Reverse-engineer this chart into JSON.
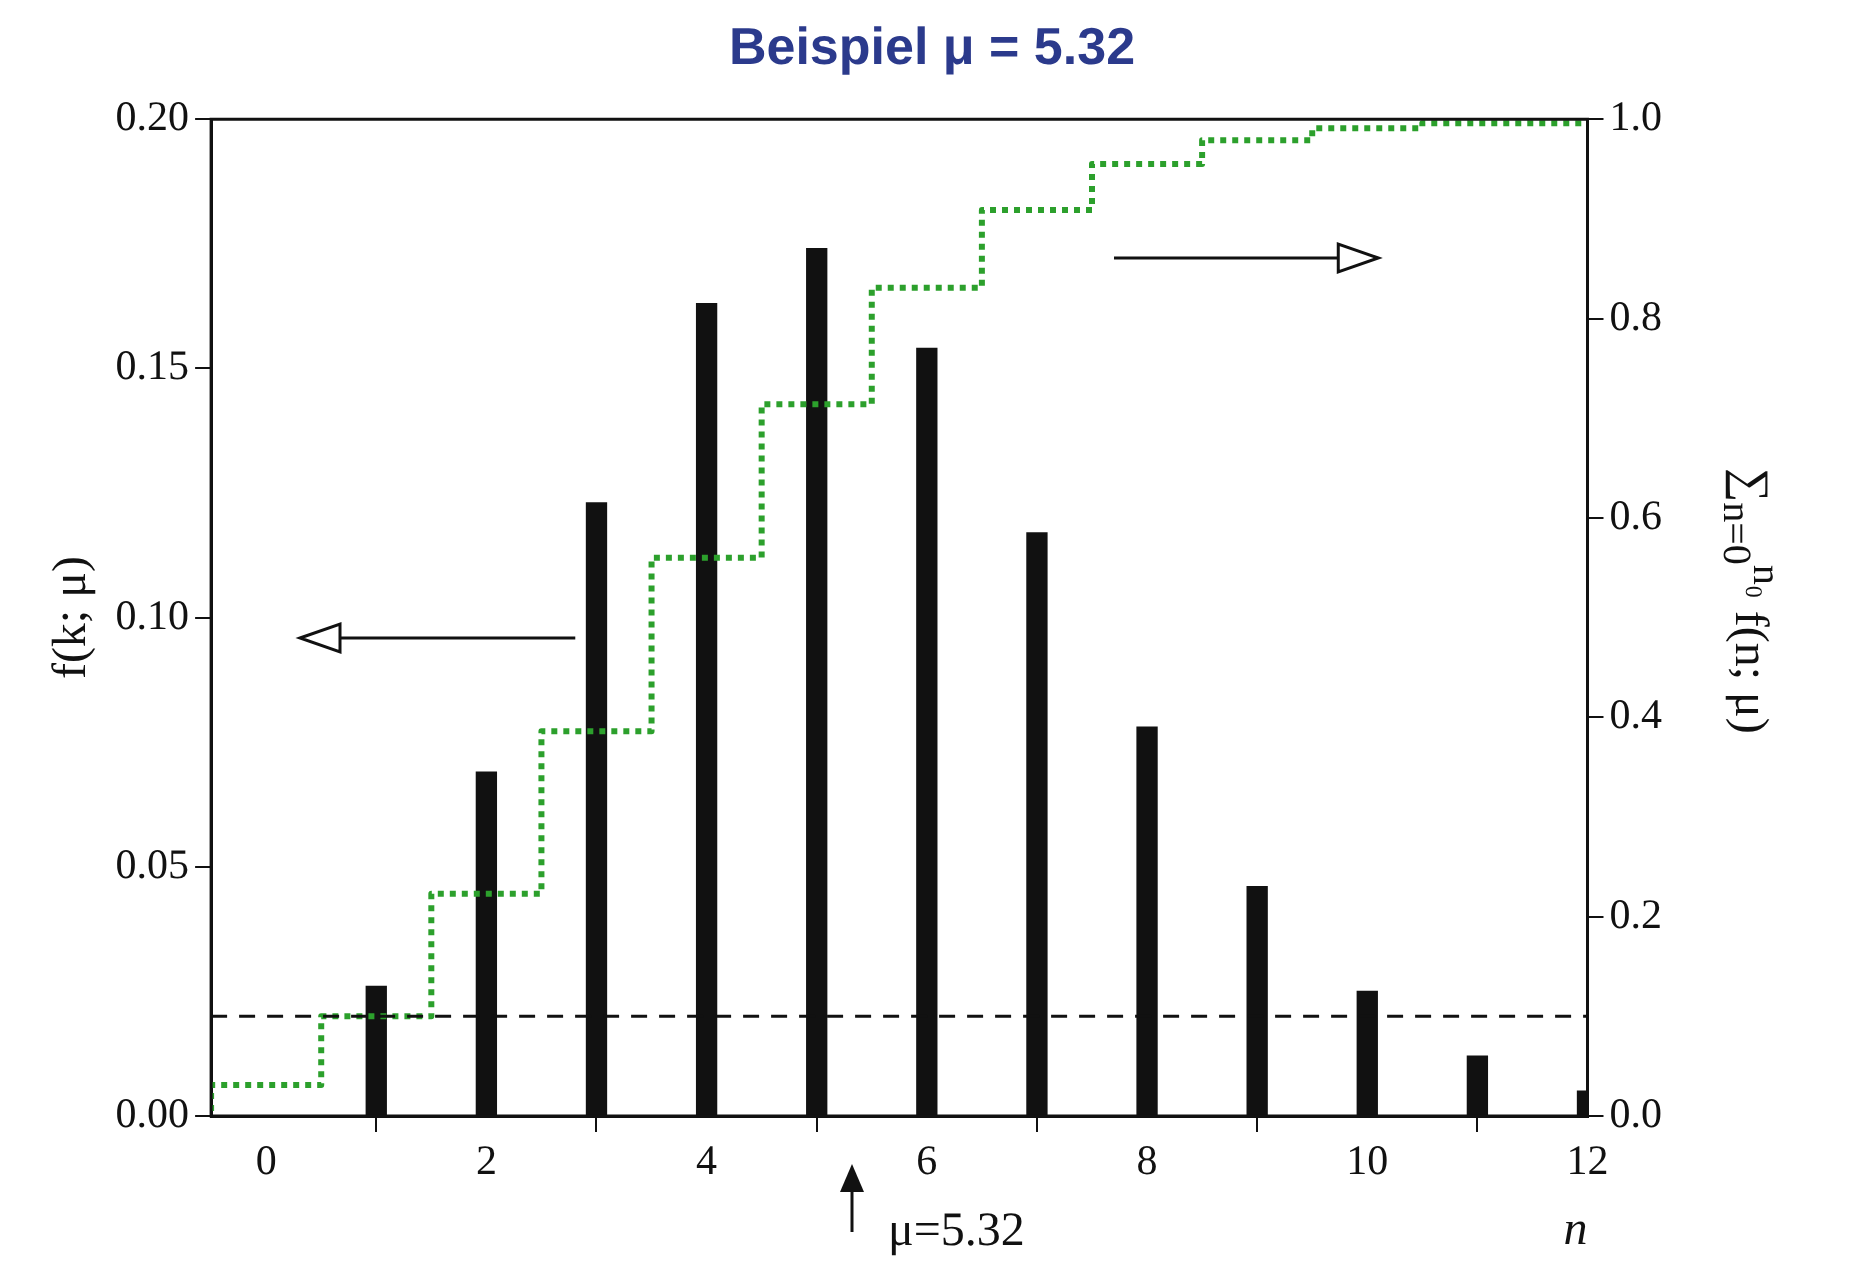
{
  "chart_data": {
    "type": "bar",
    "title": "Beispiel μ = 5.32",
    "xlabel": "n",
    "ylabel": "f(k; μ)",
    "y2label": "∑$_{n=0}$$^{n₀}$ f(n; μ)",
    "series": [
      {
        "color": "#111111",
        "x": [
          1,
          2,
          3,
          4,
          5,
          6,
          7,
          8,
          9,
          10,
          11,
          12
        ],
        "values": [
          0.026,
          0.069,
          0.123,
          0.163,
          0.174,
          0.154,
          0.117,
          0.078,
          0.046,
          0.025,
          0.012,
          0.005
        ]
      },
      {
        "type": "step",
        "axis": "y2",
        "color": "#2ca02c",
        "line_style": "dotted",
        "x": [
          -0.5,
          0.5,
          1.5,
          2.5,
          3.5,
          4.5,
          5.5,
          6.5,
          7.5,
          8.5,
          9.5,
          10.5,
          11.5,
          12
        ],
        "values": [
          0.005,
          0.031,
          0.1,
          0.223,
          0.386,
          0.56,
          0.714,
          0.831,
          0.909,
          0.955,
          0.979,
          0.991,
          0.996,
          0.996
        ]
      }
    ],
    "xlim": [
      -0.5,
      12
    ],
    "xticks": [
      0,
      2,
      4,
      6,
      8,
      10,
      12
    ],
    "ylim": [
      0,
      0.2
    ],
    "yticks": [
      {
        "value": 0,
        "label": "0.00"
      },
      0.05,
      {
        "value": 0.1,
        "label": "0.10"
      },
      0.15,
      {
        "value": 0.2,
        "label": "0.20"
      }
    ],
    "y2lim": [
      0,
      1
    ],
    "y2ticks": [
      {
        "value": 0,
        "label": "0.0"
      },
      0.2,
      0.4,
      0.6,
      0.8,
      {
        "value": 1,
        "label": "1.0"
      }
    ],
    "ref_lines": [
      {
        "axis": "y",
        "value": 0.02,
        "line_style": "dashed",
        "color": "#111111"
      }
    ],
    "annotations": [
      "μ=5.32"
    ],
    "grid": false,
    "legend": false
  }
}
